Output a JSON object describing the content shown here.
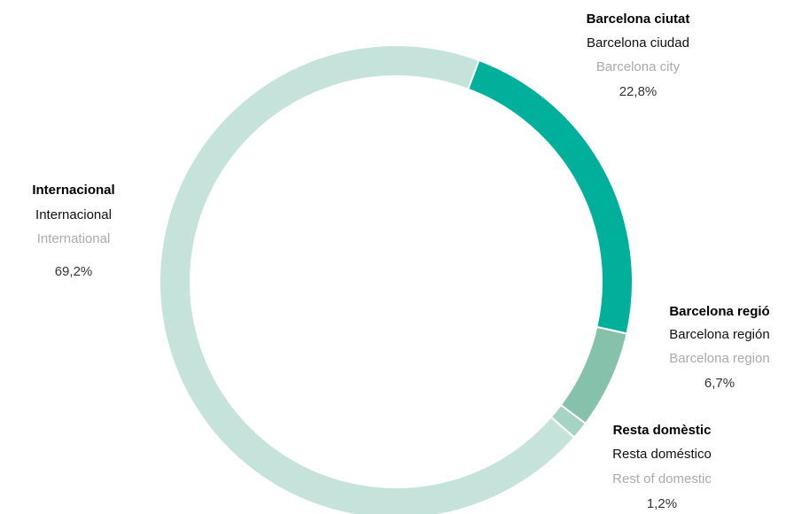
{
  "chart_data": {
    "type": "donut",
    "categories": [
      "Barcelona ciutat",
      "Barcelona regió",
      "Resta domèstic",
      "Internacional"
    ],
    "categories_es": [
      "Barcelona ciudad",
      "Barcelona región",
      "Resta doméstico",
      "Internacional"
    ],
    "categories_en": [
      "Barcelona city",
      "Barcelona region",
      "Rest of domestic",
      "International"
    ],
    "values": [
      22.8,
      6.7,
      1.2,
      69.2
    ],
    "value_labels": [
      "22,8%",
      "6,7%",
      "1,2%",
      "69,2%"
    ],
    "colors": [
      "#00b09b",
      "#86c1ac",
      "#a6d4c4",
      "#c5e3da"
    ]
  }
}
